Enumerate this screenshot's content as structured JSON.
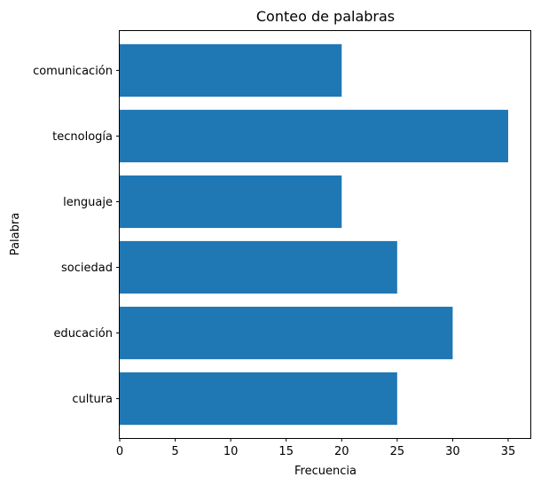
{
  "chart_data": {
    "type": "bar",
    "orientation": "horizontal",
    "title": "Conteo de palabras",
    "xlabel": "Frecuencia",
    "ylabel": "Palabra",
    "categories": [
      "cultura",
      "educación",
      "sociedad",
      "lenguaje",
      "tecnología",
      "comunicación"
    ],
    "values": [
      25,
      30,
      25,
      20,
      35,
      20
    ],
    "xlim": [
      0,
      37
    ],
    "xticks": [
      "0",
      "5",
      "10",
      "15",
      "20",
      "25",
      "30",
      "35"
    ],
    "bar_color": "#1f77b4",
    "grid": false
  }
}
